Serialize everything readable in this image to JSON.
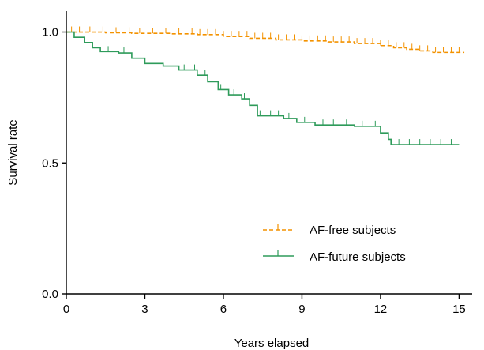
{
  "chart_data": {
    "type": "line",
    "title": "",
    "xlabel": "Years elapsed",
    "ylabel": "Survival rate",
    "xlim": [
      0,
      15.5
    ],
    "ylim": [
      0,
      1.08
    ],
    "xticks": [
      0,
      3,
      6,
      9,
      12,
      15
    ],
    "yticks": [
      0.0,
      0.5,
      1.0
    ],
    "xtick_labels": [
      "0",
      "3",
      "6",
      "9",
      "12",
      "15"
    ],
    "ytick_labels": [
      "0.0",
      "0.5",
      "1.0"
    ],
    "grid": false,
    "legend_position": "lower-right",
    "series": [
      {
        "name": "AF-free subjects",
        "color": "#F39200",
        "style": "dashed",
        "step": [
          [
            0,
            1.0
          ],
          [
            1.5,
            0.997
          ],
          [
            2.5,
            0.995
          ],
          [
            4.0,
            0.993
          ],
          [
            5.0,
            0.99
          ],
          [
            6.0,
            0.983
          ],
          [
            7.0,
            0.976
          ],
          [
            8.0,
            0.97
          ],
          [
            9.0,
            0.966
          ],
          [
            10.0,
            0.962
          ],
          [
            11.0,
            0.956
          ],
          [
            12.0,
            0.948
          ],
          [
            12.5,
            0.94
          ],
          [
            13.0,
            0.934
          ],
          [
            13.5,
            0.928
          ],
          [
            14.0,
            0.922
          ],
          [
            15.2,
            0.922
          ]
        ],
        "censor_x": [
          0.2,
          0.5,
          0.9,
          1.4,
          1.9,
          2.4,
          2.8,
          3.3,
          3.8,
          4.3,
          4.8,
          5.1,
          5.4,
          5.7,
          6.0,
          6.3,
          6.6,
          6.9,
          7.2,
          7.5,
          7.8,
          8.1,
          8.4,
          8.7,
          9.0,
          9.3,
          9.6,
          9.9,
          10.2,
          10.5,
          10.8,
          11.1,
          11.4,
          11.7,
          12.0,
          12.3,
          12.6,
          12.9,
          13.2,
          13.5,
          13.8,
          14.1,
          14.4,
          14.7,
          15.0
        ]
      },
      {
        "name": "AF-future subjects",
        "color": "#2E9B5A",
        "style": "solid",
        "step": [
          [
            0,
            1.0
          ],
          [
            0.3,
            0.98
          ],
          [
            0.7,
            0.96
          ],
          [
            1.0,
            0.94
          ],
          [
            1.3,
            0.925
          ],
          [
            2.0,
            0.92
          ],
          [
            2.5,
            0.9
          ],
          [
            3.0,
            0.88
          ],
          [
            3.7,
            0.87
          ],
          [
            4.3,
            0.855
          ],
          [
            5.0,
            0.835
          ],
          [
            5.4,
            0.81
          ],
          [
            5.8,
            0.78
          ],
          [
            6.2,
            0.76
          ],
          [
            6.7,
            0.745
          ],
          [
            7.0,
            0.72
          ],
          [
            7.3,
            0.68
          ],
          [
            8.3,
            0.67
          ],
          [
            8.8,
            0.655
          ],
          [
            9.5,
            0.645
          ],
          [
            11.0,
            0.64
          ],
          [
            12.0,
            0.615
          ],
          [
            12.3,
            0.59
          ],
          [
            12.4,
            0.57
          ],
          [
            15.0,
            0.57
          ]
        ],
        "censor_x": [
          1.6,
          2.2,
          4.5,
          4.9,
          5.3,
          5.9,
          6.4,
          6.8,
          7.4,
          7.8,
          8.1,
          8.5,
          9.1,
          9.8,
          10.2,
          10.7,
          11.3,
          11.8,
          12.7,
          13.1,
          13.5,
          13.9,
          14.3,
          14.7
        ]
      }
    ]
  }
}
